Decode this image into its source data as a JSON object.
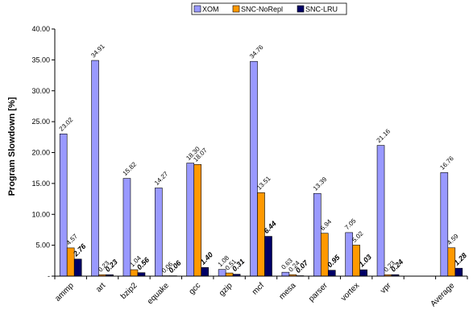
{
  "chart_data": {
    "type": "bar",
    "title": "",
    "xlabel": "",
    "ylabel": "Program Slowdown [%]",
    "ylim": [
      0,
      40
    ],
    "yticks": [
      "-",
      "5.00",
      "10.00",
      "15.00",
      "20.00",
      "25.00",
      "30.00",
      "35.00",
      "40.00"
    ],
    "grid": false,
    "legend_position": "top",
    "categories": [
      "ammp",
      "art",
      "bzip2",
      "equake",
      "gcc",
      "gzip",
      "mcf",
      "mesa",
      "parser",
      "vortex",
      "vpr",
      "",
      "Average"
    ],
    "series": [
      {
        "name": "XOM",
        "color": "#9999ff",
        "values": [
          23.02,
          34.91,
          15.82,
          14.27,
          18.3,
          1.08,
          34.76,
          0.63,
          13.39,
          7.05,
          21.16,
          null,
          16.76
        ],
        "labels": [
          "23.02",
          "34.91",
          "15.82",
          "14.27",
          "18.30",
          "1.08",
          "34.76",
          "0.63",
          "13.39",
          "7.05",
          "21.16",
          "",
          "16.76"
        ]
      },
      {
        "name": "SNC-NoRepl",
        "color": "#ff9900",
        "values": [
          4.57,
          0.23,
          1.04,
          0.06,
          18.07,
          0.51,
          13.51,
          0.24,
          6.94,
          5.02,
          0.23,
          null,
          4.59
        ],
        "labels": [
          "4.57",
          "0.23",
          "1.04",
          "0.06",
          "18.07",
          "0.51",
          "13.51",
          "0.24",
          "6.94",
          "5.02",
          "0.23",
          "",
          "4.59"
        ]
      },
      {
        "name": "SNC-LRU",
        "color": "#000066",
        "values": [
          2.76,
          0.23,
          0.56,
          0.06,
          1.4,
          0.31,
          6.44,
          0.07,
          0.95,
          1.03,
          0.24,
          null,
          1.28
        ],
        "labels": [
          "2.76",
          "0.23",
          "0.56",
          "0.06",
          "1.40",
          "0.31",
          "6.44",
          "0.07",
          "0.95",
          "1.03",
          "0.24",
          "",
          "1.28"
        ]
      }
    ]
  }
}
